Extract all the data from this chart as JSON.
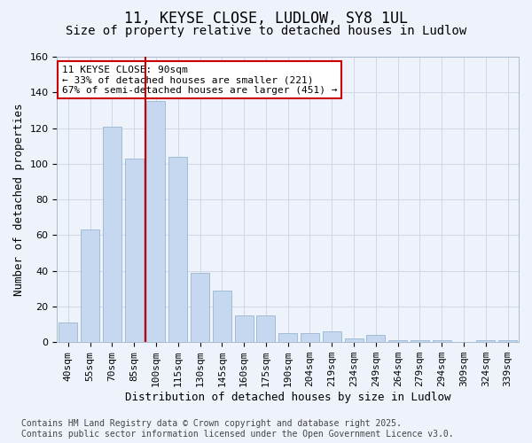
{
  "title_line1": "11, KEYSE CLOSE, LUDLOW, SY8 1UL",
  "title_line2": "Size of property relative to detached houses in Ludlow",
  "xlabel": "Distribution of detached houses by size in Ludlow",
  "ylabel": "Number of detached properties",
  "categories": [
    "40sqm",
    "55sqm",
    "70sqm",
    "85sqm",
    "100sqm",
    "115sqm",
    "130sqm",
    "145sqm",
    "160sqm",
    "175sqm",
    "190sqm",
    "204sqm",
    "219sqm",
    "234sqm",
    "249sqm",
    "264sqm",
    "279sqm",
    "294sqm",
    "309sqm",
    "324sqm",
    "339sqm"
  ],
  "values": [
    11,
    63,
    121,
    103,
    135,
    104,
    39,
    29,
    15,
    15,
    5,
    5,
    6,
    2,
    4,
    1,
    1,
    1,
    0,
    1,
    1
  ],
  "bar_color": "#c5d8f0",
  "bar_edge_color": "#a0bcd8",
  "grid_color": "#d0d8e8",
  "background_color": "#eef2fb",
  "annotation_line1": "11 KEYSE CLOSE: 90sqm",
  "annotation_line2": "← 33% of detached houses are smaller (221)",
  "annotation_line3": "67% of semi-detached houses are larger (451) →",
  "annotation_box_color": "#ffffff",
  "annotation_box_edge_color": "#cc0000",
  "vline_color": "#cc0000",
  "ylim": [
    0,
    160
  ],
  "yticks": [
    0,
    20,
    40,
    60,
    80,
    100,
    120,
    140,
    160
  ],
  "footer_line1": "Contains HM Land Registry data © Crown copyright and database right 2025.",
  "footer_line2": "Contains public sector information licensed under the Open Government Licence v3.0.",
  "title_fontsize": 12,
  "subtitle_fontsize": 10,
  "axis_label_fontsize": 9,
  "tick_fontsize": 8,
  "annotation_fontsize": 8,
  "footer_fontsize": 7
}
